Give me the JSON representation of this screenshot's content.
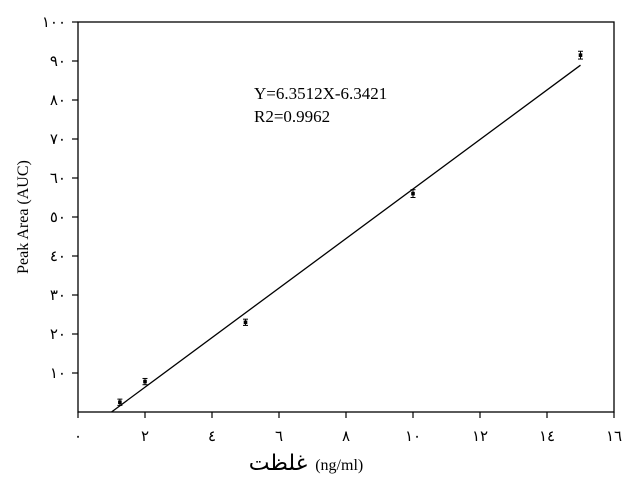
{
  "chart_data": {
    "type": "scatter",
    "xlim": [
      0,
      16
    ],
    "ylim": [
      0,
      100
    ],
    "x_ticks": [
      0,
      2,
      4,
      6,
      8,
      10,
      12,
      14,
      16
    ],
    "x_tick_labels": [
      "٠",
      "٢",
      "٤",
      "٦",
      "٨",
      "١٠",
      "١٢",
      "١٤",
      "١٦"
    ],
    "y_ticks": [
      10,
      20,
      30,
      40,
      50,
      60,
      70,
      80,
      90,
      100
    ],
    "y_tick_labels": [
      "١٠",
      "٢٠",
      "٣٠",
      "٤٠",
      "٥٠",
      "٦٠",
      "٧٠",
      "٨٠",
      "٩٠",
      "١٠٠"
    ],
    "ylabel": "Peak Area (AUC)",
    "xlabel_main": "غلظت",
    "xlabel_unit": "(ng/ml)",
    "grid": false,
    "points": [
      {
        "x": 1.25,
        "y": 2.5,
        "err": 0.8
      },
      {
        "x": 2.0,
        "y": 7.8,
        "err": 0.8
      },
      {
        "x": 5.0,
        "y": 23.0,
        "err": 0.8
      },
      {
        "x": 10.0,
        "y": 56.0,
        "err": 1.0
      },
      {
        "x": 15.0,
        "y": 91.5,
        "err": 1.0
      }
    ],
    "fit": {
      "slope": 6.3512,
      "intercept": -6.3421,
      "x_start": 1.0,
      "x_end": 15.0
    },
    "equation_lines": [
      "Y=6.3512X-6.3421",
      "R2=0.9962"
    ]
  }
}
